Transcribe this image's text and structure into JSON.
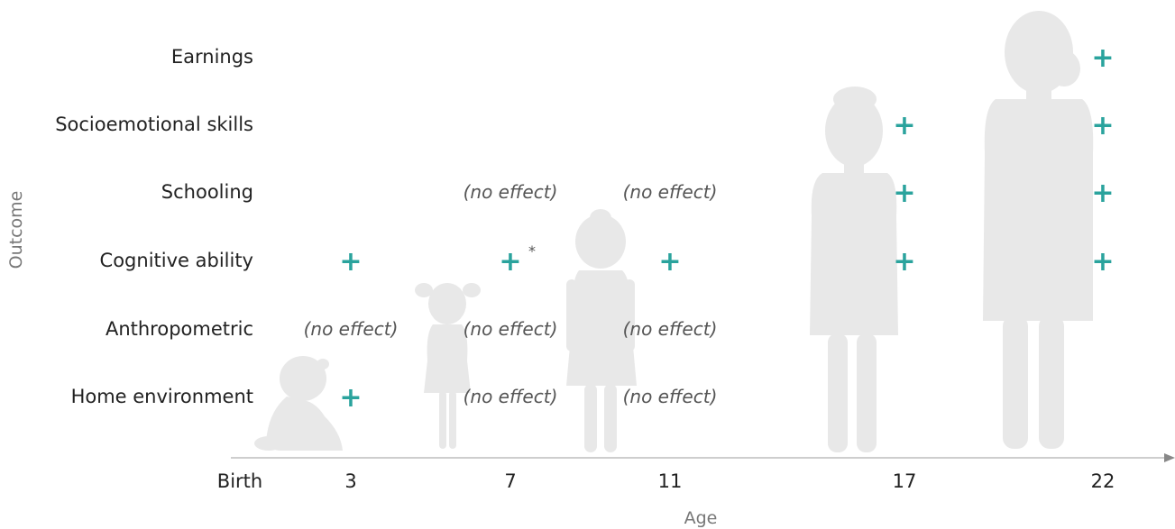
{
  "colors": {
    "plus": "#2aa39d",
    "silhouette": "#e8e8e8",
    "axis": "#bdbdbd",
    "text": "#222222",
    "muted": "#555555"
  },
  "axis": {
    "x_title": "Age",
    "y_title": "Outcome",
    "ticks": [
      "Birth",
      "3",
      "7",
      "11",
      "17",
      "22"
    ]
  },
  "rows": [
    "Earnings",
    "Socioemotional skills",
    "Schooling",
    "Cognitive ability",
    "Anthropometric",
    "Home environment"
  ],
  "cells": [
    {
      "row": 0,
      "col": 5,
      "value": "+"
    },
    {
      "row": 1,
      "col": 4,
      "value": "+"
    },
    {
      "row": 1,
      "col": 5,
      "value": "+"
    },
    {
      "row": 2,
      "col": 2,
      "value": "(no effect)"
    },
    {
      "row": 2,
      "col": 3,
      "value": "(no effect)"
    },
    {
      "row": 2,
      "col": 4,
      "value": "+"
    },
    {
      "row": 2,
      "col": 5,
      "value": "+"
    },
    {
      "row": 3,
      "col": 1,
      "value": "+"
    },
    {
      "row": 3,
      "col": 2,
      "value": "+",
      "note": "*"
    },
    {
      "row": 3,
      "col": 3,
      "value": "+"
    },
    {
      "row": 3,
      "col": 4,
      "value": "+"
    },
    {
      "row": 3,
      "col": 5,
      "value": "+"
    },
    {
      "row": 4,
      "col": 1,
      "value": "(no effect)"
    },
    {
      "row": 4,
      "col": 2,
      "value": "(no effect)"
    },
    {
      "row": 4,
      "col": 3,
      "value": "(no effect)"
    },
    {
      "row": 5,
      "col": 1,
      "value": "+"
    },
    {
      "row": 5,
      "col": 2,
      "value": "(no effect)"
    },
    {
      "row": 5,
      "col": 3,
      "value": "(no effect)"
    }
  ]
}
